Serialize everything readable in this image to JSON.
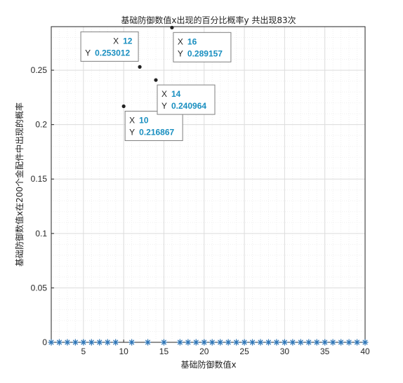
{
  "chart_data": {
    "type": "scatter",
    "title": "基础防御数值x出现的百分比概率y    共出现83次",
    "xlabel": "基础防御数值x",
    "ylabel": "基础防御数值x在200个金配件中出现的概率",
    "xlim": [
      1,
      40
    ],
    "ylim": [
      0,
      0.29
    ],
    "xticks": [
      5,
      10,
      15,
      20,
      25,
      30,
      35,
      40
    ],
    "yticks": [
      0,
      0.05,
      0.1,
      0.15,
      0.2,
      0.25
    ],
    "grid": "major-and-minor",
    "series": [
      {
        "marker": "asterisk",
        "color": "#2e75b6",
        "x": [
          1,
          2,
          3,
          4,
          5,
          6,
          7,
          8,
          9,
          11,
          13,
          15,
          17,
          18,
          19,
          20,
          21,
          22,
          23,
          24,
          25,
          26,
          27,
          28,
          29,
          30,
          31,
          32,
          33,
          34,
          35,
          36,
          37,
          38,
          39,
          40
        ],
        "y": [
          0,
          0,
          0,
          0,
          0,
          0,
          0,
          0,
          0,
          0,
          0,
          0,
          0,
          0,
          0,
          0,
          0,
          0,
          0,
          0,
          0,
          0,
          0,
          0,
          0,
          0,
          0,
          0,
          0,
          0,
          0,
          0,
          0,
          0,
          0,
          0
        ]
      },
      {
        "marker": "dot",
        "color": "#222222",
        "x": [
          10,
          12,
          14,
          16
        ],
        "y": [
          0.216867,
          0.253012,
          0.240964,
          0.289157
        ]
      }
    ],
    "datatips": [
      {
        "x_label": "X",
        "x_value": "10",
        "y_label": "Y",
        "y_value": "0.216867"
      },
      {
        "x_label": "X",
        "x_value": "12",
        "y_label": "Y",
        "y_value": "0.253012"
      },
      {
        "x_label": "X",
        "x_value": "14",
        "y_label": "Y",
        "y_value": "0.240964"
      },
      {
        "x_label": "X",
        "x_value": "16",
        "y_label": "Y",
        "y_value": "0.289157"
      }
    ],
    "colors": {
      "axis": "#262626",
      "grid_major": "#dcdcdc",
      "grid_minor": "#efefef",
      "datatip_value": "#1a8fc0"
    }
  }
}
